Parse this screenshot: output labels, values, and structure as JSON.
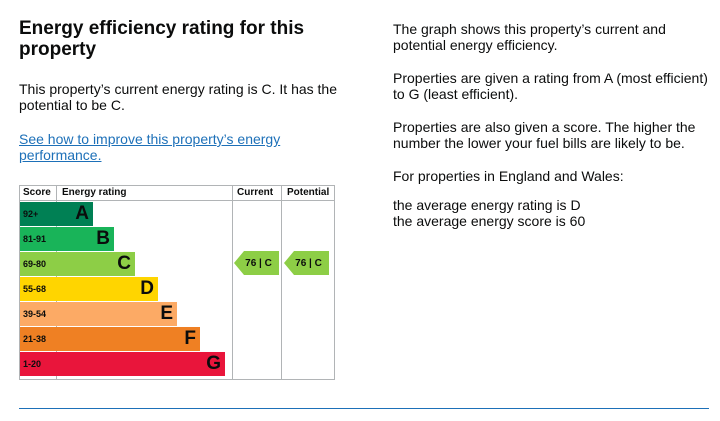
{
  "left": {
    "heading": "Energy efficiency rating for this property",
    "current_rating_text": "This property’s current energy rating is C. It has the potential to be C.",
    "improve_link": "See how to improve this property’s energy performance."
  },
  "chart": {
    "headers": {
      "score": "Score",
      "rating": "Energy rating",
      "current": "Current",
      "potential": "Potential"
    },
    "bands": [
      {
        "score": "92+",
        "letter": "A",
        "color": "#008054",
        "fill": 0.21
      },
      {
        "score": "81-91",
        "letter": "B",
        "color": "#19b459",
        "fill": 0.33
      },
      {
        "score": "69-80",
        "letter": "C",
        "color": "#8dce46",
        "fill": 0.45
      },
      {
        "score": "55-68",
        "letter": "D",
        "color": "#ffd500",
        "fill": 0.58
      },
      {
        "score": "39-54",
        "letter": "E",
        "color": "#fcaa65",
        "fill": 0.69
      },
      {
        "score": "21-38",
        "letter": "F",
        "color": "#ef8023",
        "fill": 0.82
      },
      {
        "score": "1-20",
        "letter": "G",
        "color": "#e9153b",
        "fill": 0.96
      }
    ],
    "current": {
      "score": "76",
      "letter": "C",
      "band": "C",
      "color": "#8dce46"
    },
    "potential": {
      "score": "76",
      "letter": "C",
      "band": "C",
      "color": "#8dce46"
    }
  },
  "right": {
    "p1": "The graph shows this property’s current and potential energy efficiency.",
    "p2": "Properties are given a rating from A (most efficient) to G (least efficient).",
    "p3": "Properties are also given a score. The higher the number the lower your fuel bills are likely to be.",
    "p4": "For properties in England and Wales:",
    "avg_rating": "the average energy rating is D",
    "avg_score": "the average energy score is 60"
  }
}
